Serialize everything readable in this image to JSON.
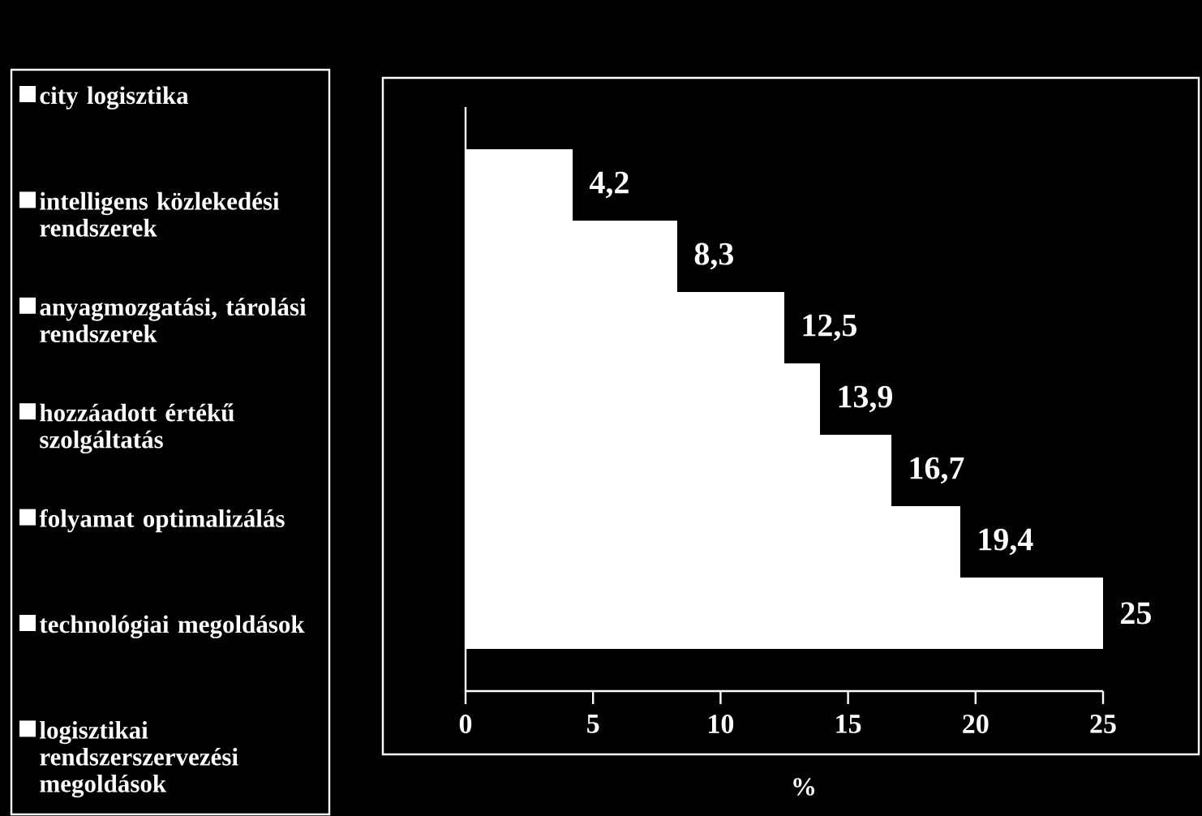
{
  "chart_data": {
    "type": "bar",
    "orientation": "horizontal",
    "xlabel": "%",
    "categories": [
      null
    ],
    "series": [
      {
        "name": "city logisztika",
        "color": "#ffffff",
        "values": [
          4.2
        ],
        "value_labels": [
          "4,2"
        ]
      },
      {
        "name": "intelligens közlekedési rendszerek",
        "color": "#ffffff",
        "values": [
          8.3
        ],
        "value_labels": [
          "8,3"
        ]
      },
      {
        "name": "anyagmozgatási, tárolási rendszerek",
        "color": "#ffffff",
        "values": [
          12.5
        ],
        "value_labels": [
          "12,5"
        ]
      },
      {
        "name": "hozzáadott értékű szolgáltatás",
        "color": "#ffffff",
        "values": [
          13.9
        ],
        "value_labels": [
          "13,9"
        ]
      },
      {
        "name": "folyamat optimalizálás",
        "color": "#ffffff",
        "values": [
          16.7
        ],
        "value_labels": [
          "16,7"
        ]
      },
      {
        "name": "technológiai megoldások",
        "color": "#ffffff",
        "values": [
          19.4
        ],
        "value_labels": [
          "19,4"
        ]
      },
      {
        "name": "logisztikai rendszerszervezési megoldások",
        "color": "#ffffff",
        "values": [
          25
        ],
        "value_labels": [
          "25"
        ]
      }
    ],
    "xlim": [
      0,
      25
    ],
    "xticks": [
      0,
      5,
      10,
      15,
      20,
      25
    ],
    "legend": "left"
  }
}
